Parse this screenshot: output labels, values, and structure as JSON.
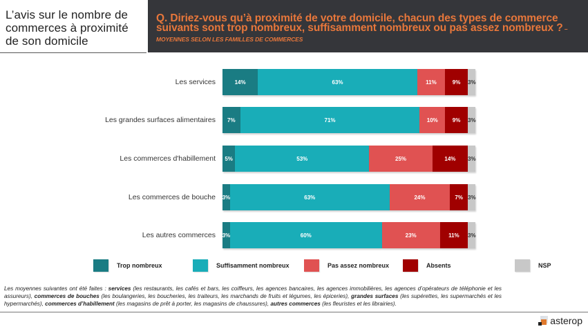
{
  "header": {
    "title": "L’avis sur le nombre de commerces à proximité de son domicile",
    "question": "Q. Diriez-vous qu’à proximité de votre domicile, chacun des types de commerce suivants sont trop nombreux, suffisamment nombreux ou pas assez nombreux  ?",
    "question_sub": " – MOYENNES SELON LES FAMILLES DE COMMERCES"
  },
  "colors": {
    "header_bg": "#35363a",
    "header_text": "#e8773b",
    "trop": "#1a7c83",
    "suffisamment": "#19adb8",
    "pas_assez": "#e05252",
    "absents": "#a00000",
    "nsp": "#c8c8c8"
  },
  "chart_data": {
    "type": "bar",
    "orientation": "horizontal",
    "stacked": true,
    "title": "",
    "xlabel": "",
    "ylabel": "",
    "categories": [
      "Les services",
      "Les grandes surfaces alimentaires",
      "Les commerces d'habillement",
      "Les commerces de bouche",
      "Les autres commerces"
    ],
    "series": [
      {
        "name": "Trop nombreux",
        "color": "#1a7c83",
        "values": [
          14,
          7,
          5,
          3,
          3
        ],
        "labels": [
          "14%",
          "7%",
          "5%",
          "3%",
          "3%"
        ]
      },
      {
        "name": "Suffisamment nombreux",
        "color": "#19adb8",
        "values": [
          63,
          71,
          53,
          63,
          60
        ],
        "labels": [
          "63%",
          "71%",
          "53%",
          "63%",
          "60%"
        ]
      },
      {
        "name": "Pas assez nombreux",
        "color": "#e05252",
        "values": [
          11,
          10,
          25,
          24,
          23
        ],
        "labels": [
          "11%",
          "10%",
          "25%",
          "24%",
          "23%"
        ]
      },
      {
        "name": "Absents",
        "color": "#a00000",
        "values": [
          9,
          9,
          14,
          7,
          11
        ],
        "labels": [
          "9%",
          "9%",
          "14%",
          "7%",
          "11%"
        ]
      },
      {
        "name": "NSP",
        "color": "#c8c8c8",
        "values": [
          3,
          3,
          3,
          3,
          3
        ],
        "labels": [
          "3%",
          "3%",
          "3%",
          "3%",
          "3%"
        ]
      }
    ],
    "xlim": [
      0,
      100
    ],
    "grid": false,
    "legend_position": "bottom"
  },
  "footnote": {
    "parts": [
      {
        "text": "Les moyennes suivantes ont été faites : ",
        "bold": false
      },
      {
        "text": "services",
        "bold": true
      },
      {
        "text": " (les restaurants, les cafés et bars, les coiffeurs, les agences bancaires, les agences immobilières, les agences d’opérateurs de téléphonie et les assureurs), ",
        "bold": false
      },
      {
        "text": "commerces de bouches",
        "bold": true
      },
      {
        "text": " (les boulangeries, les boucheries, les traiteurs, les marchands de fruits et légumes, les épiceries), ",
        "bold": false
      },
      {
        "text": "grandes surfaces",
        "bold": true
      },
      {
        "text": " (les supérettes, les supermarchés et les hypermarchés), ",
        "bold": false
      },
      {
        "text": "commerces d’habillement",
        "bold": true
      },
      {
        "text": " (les magasins de prêt à porter, les magasins de chaussures), ",
        "bold": false
      },
      {
        "text": "autres commerces",
        "bold": true
      },
      {
        "text": " (les fleuristes et les librairies).",
        "bold": false
      }
    ]
  },
  "logo": {
    "text": "asterop"
  }
}
